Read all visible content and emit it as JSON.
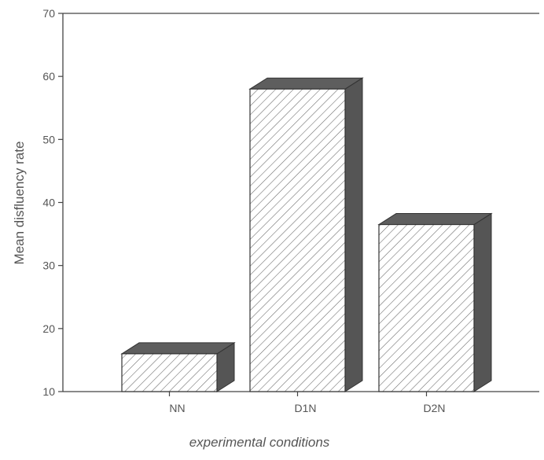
{
  "chart_data": {
    "type": "bar",
    "style": "3d",
    "categories": [
      "NN",
      "D1N",
      "D2N"
    ],
    "values": [
      16,
      58,
      36.5
    ],
    "title": "",
    "xlabel": "experimental conditions",
    "ylabel": "Mean disfluency rate",
    "ylim": [
      10,
      70
    ],
    "yticks": [
      10,
      20,
      30,
      40,
      50,
      60,
      70
    ],
    "grid": false,
    "legend": "none",
    "colors": {
      "bar_front": "#ffffff",
      "hatch": "#666666",
      "bar_side": "#555555",
      "bar_top": "#5e5e5e",
      "axis": "#444444",
      "text": "#555555"
    }
  }
}
